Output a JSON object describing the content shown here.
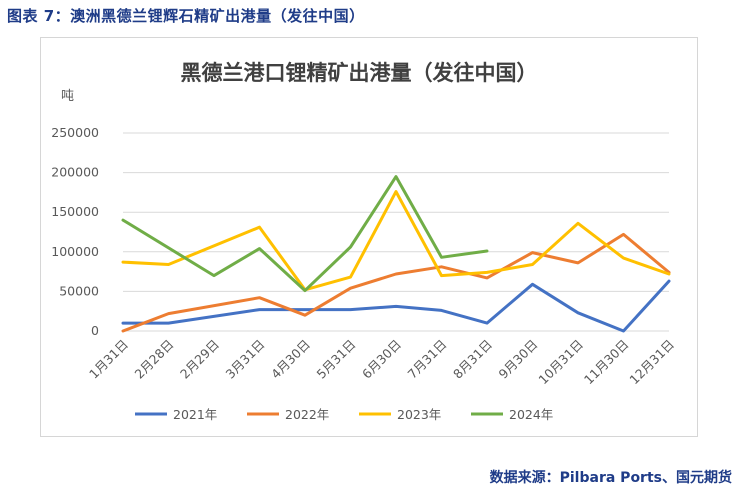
{
  "figure_caption": "图表 7：澳洲黑德兰锂辉石精矿出港量（发往中国）",
  "source_note": "数据来源：Pilbara Ports、国元期货",
  "colors": {
    "caption": "#1f3c88",
    "grid": "#d9d9d9",
    "axis_text": "#595959",
    "title_text": "#404040"
  },
  "chart_data": {
    "type": "line",
    "title": "黑德兰港口锂精矿出港量（发往中国）",
    "ylabel": "吨",
    "xlabel": "",
    "categories": [
      "1月31日",
      "2月28日",
      "2月29日",
      "3月31日",
      "4月30日",
      "5月31日",
      "6月30日",
      "7月31日",
      "8月31日",
      "9月30日",
      "10月31日",
      "11月30日",
      "12月31日"
    ],
    "ylim": [
      0,
      250000
    ],
    "yticks": [
      0,
      50000,
      100000,
      150000,
      200000,
      250000
    ],
    "grid": true,
    "legend_position": "bottom",
    "series": [
      {
        "name": "2021年",
        "color": "#4472c4",
        "values": [
          10000,
          10000,
          null,
          27000,
          27000,
          27000,
          31000,
          26000,
          10000,
          59000,
          23000,
          0,
          63000
        ]
      },
      {
        "name": "2022年",
        "color": "#ed7d31",
        "values": [
          0,
          22000,
          null,
          42000,
          20000,
          54000,
          72000,
          81000,
          67000,
          99000,
          86000,
          122000,
          74000
        ]
      },
      {
        "name": "2023年",
        "color": "#ffc000",
        "values": [
          87000,
          84000,
          null,
          131000,
          52000,
          68000,
          176000,
          70000,
          74000,
          84000,
          136000,
          92000,
          72000
        ]
      },
      {
        "name": "2024年",
        "color": "#70ad47",
        "values": [
          140000,
          null,
          70000,
          104000,
          51000,
          106000,
          195000,
          93000,
          101000,
          null,
          null,
          null,
          null
        ]
      }
    ]
  }
}
